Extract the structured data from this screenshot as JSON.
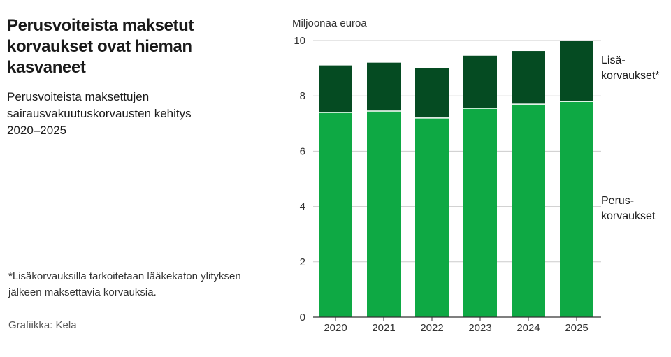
{
  "title": "Perusvoiteista maksetut korvaukset ovat hieman kasvaneet",
  "subtitle": "Perusvoiteista maksettujen sairausvakuutuskorvausten kehitys 2020–2025",
  "footnote": "*Lisäkorvauksilla tarkoitetaan lääkekaton ylityksen jälkeen maksettavia korvauksia.",
  "source": "Grafiikka: Kela",
  "colors": {
    "perus": "#0ea944",
    "lisa": "#054b22",
    "axis": "#333333",
    "grid": "#cccccc"
  },
  "chart_data": {
    "type": "bar",
    "stacked": true,
    "categories": [
      "2020",
      "2021",
      "2022",
      "2023",
      "2024",
      "2025"
    ],
    "series": [
      {
        "name": "Perus-korvaukset",
        "legend_lines": [
          "Perus-",
          "korvaukset"
        ],
        "values": [
          7.4,
          7.45,
          7.2,
          7.55,
          7.7,
          7.8
        ]
      },
      {
        "name": "Lisä-korvaukset*",
        "legend_lines": [
          "Lisä-",
          "korvaukset*"
        ],
        "values": [
          1.7,
          1.75,
          1.8,
          1.9,
          1.92,
          2.2
        ]
      }
    ],
    "yunit": "Miljoonaa euroa",
    "ylim": [
      0,
      10
    ],
    "yticks": [
      0,
      2,
      4,
      6,
      8,
      10
    ],
    "grid": true,
    "legend": "right"
  }
}
